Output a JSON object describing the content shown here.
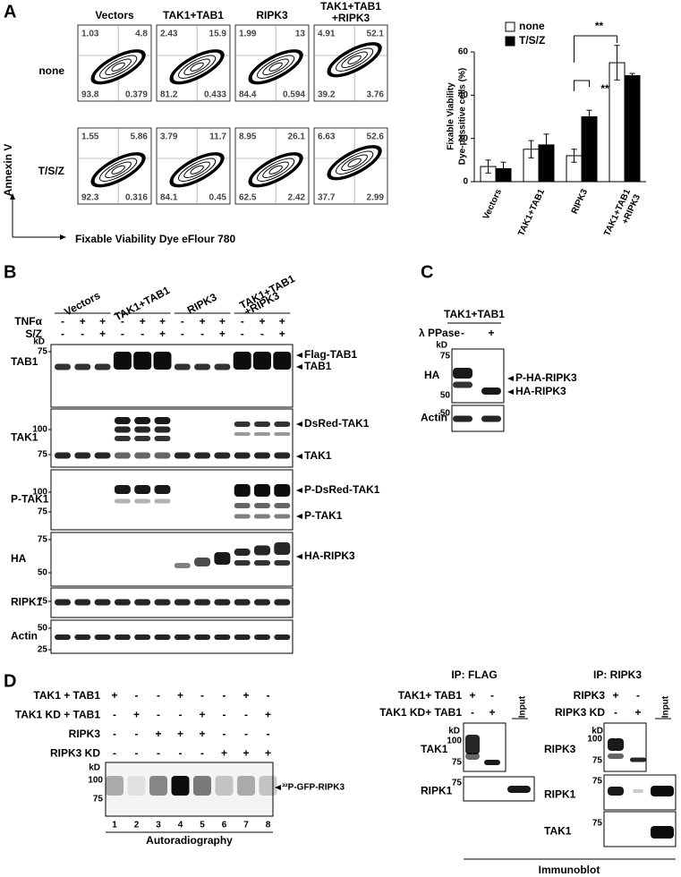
{
  "panel_labels": [
    "A",
    "B",
    "C",
    "D"
  ],
  "flow": {
    "columns": [
      [
        "Vectors"
      ],
      [
        "TAK1+TAB1"
      ],
      [
        "RIPK3"
      ],
      [
        "TAK1+TAB1",
        "+RIPK3"
      ]
    ],
    "rows": [
      "none",
      "T/S/Z"
    ],
    "y_axis": "Annexin V",
    "x_axis": "Fixable Viability Dye eFlour 780",
    "quadrants": [
      [
        [
          1.03,
          4.8,
          93.8,
          0.379
        ],
        [
          2.43,
          15.9,
          81.2,
          0.433
        ],
        [
          1.99,
          13,
          84.4,
          0.594
        ],
        [
          4.91,
          52.1,
          39.2,
          3.76
        ]
      ],
      [
        [
          1.55,
          5.86,
          92.3,
          0.316
        ],
        [
          3.79,
          11.7,
          84.1,
          0.45
        ],
        [
          8.95,
          26.1,
          62.5,
          2.42
        ],
        [
          6.63,
          52.6,
          37.7,
          2.99
        ]
      ]
    ]
  },
  "chart_data": {
    "type": "bar",
    "y_label": [
      "Fixable Viability",
      "Dye-possitive cells (%)"
    ],
    "categories": [
      [
        "Vectors"
      ],
      [
        "TAK1+TAB1"
      ],
      [
        "RIPK3"
      ],
      [
        "TAK1+TAB1",
        "+RIPK3"
      ]
    ],
    "series": [
      {
        "name": "none",
        "color": "#ffffff",
        "values": [
          7,
          15,
          12,
          55
        ],
        "errors": [
          3,
          4,
          3,
          8
        ]
      },
      {
        "name": "T/S/Z",
        "color": "#000000",
        "values": [
          6,
          17,
          30,
          49
        ],
        "errors": [
          3,
          5,
          3,
          1
        ]
      }
    ],
    "ylim": [
      0,
      60
    ],
    "yticks": [
      0,
      20,
      40,
      60
    ],
    "significance": [
      "**",
      "**"
    ]
  },
  "blot_b": {
    "groups": [
      [
        "Vectors"
      ],
      [
        "TAK1+TAB1"
      ],
      [
        "RIPK3"
      ],
      [
        "TAK1+TAB1",
        "+RIPK3"
      ]
    ],
    "treatments": [
      {
        "label": "TNFα",
        "signs": [
          "-",
          "+",
          "+",
          "-",
          "+",
          "+",
          "-",
          "+",
          "+",
          "-",
          "+",
          "+"
        ]
      },
      {
        "label": "S/Z",
        "signs": [
          "-",
          "-",
          "+",
          "-",
          "-",
          "+",
          "-",
          "-",
          "+",
          "-",
          "-",
          "+"
        ]
      }
    ],
    "kd": "kD",
    "blots": [
      {
        "label": "TAB1",
        "markers": [
          75
        ],
        "bands": [
          "Flag-TAB1",
          "TAB1"
        ]
      },
      {
        "label": "TAK1",
        "markers": [
          100,
          75
        ],
        "bands": [
          "DsRed-TAK1",
          "TAK1"
        ]
      },
      {
        "label": "P-TAK1",
        "markers": [
          100,
          75
        ],
        "bands": [
          "P-DsRed-TAK1",
          "P-TAK1"
        ]
      },
      {
        "label": "HA",
        "markers": [
          75,
          50
        ],
        "bands": [
          "HA-RIPK3"
        ]
      },
      {
        "label": "RIPK1",
        "markers": [
          75
        ]
      },
      {
        "label": "Actin",
        "markers": [
          50,
          25
        ]
      }
    ]
  },
  "blot_c": {
    "group": "TAK1+TAB1",
    "treatment": {
      "label": "λ PPase",
      "signs": [
        "-",
        "+"
      ]
    },
    "kd": "kD",
    "blots": [
      {
        "label": "HA",
        "markers": [
          75,
          50
        ],
        "bands": [
          "P-HA-RIPK3",
          "HA-RIPK3"
        ]
      },
      {
        "label": "Actin",
        "markers": [
          50
        ]
      }
    ]
  },
  "blot_d": {
    "conditions": [
      {
        "label": "TAK1 + TAB1",
        "signs": [
          "+",
          "-",
          "-",
          "+",
          "-",
          "-",
          "+",
          "-"
        ]
      },
      {
        "label": "TAK1 KD + TAB1",
        "signs": [
          "-",
          "+",
          "-",
          "-",
          "+",
          "-",
          "-",
          "+"
        ]
      },
      {
        "label": "RIPK3",
        "signs": [
          "-",
          "-",
          "+",
          "+",
          "+",
          "-",
          "-",
          "-"
        ]
      },
      {
        "label": "RIPK3 KD",
        "signs": [
          "-",
          "-",
          "-",
          "-",
          "-",
          "+",
          "+",
          "+"
        ]
      }
    ],
    "kd": "kD",
    "markers": [
      100,
      75
    ],
    "band": "³²P-GFP-RIPK3",
    "lanes": [
      1,
      2,
      3,
      4,
      5,
      6,
      7,
      8
    ],
    "method": "Autoradiography"
  },
  "ip_flag": {
    "title": "IP: FLAG",
    "conditions": [
      {
        "label": "TAK1+ TAB1",
        "signs": [
          "+",
          "-"
        ]
      },
      {
        "label": "TAK1 KD+ TAB1",
        "signs": [
          "-",
          "+"
        ]
      }
    ],
    "input": "Input",
    "kd": "kD",
    "blots": [
      {
        "label": "TAK1",
        "markers": [
          100,
          75
        ]
      },
      {
        "label": "RIPK1",
        "markers": [
          75
        ]
      }
    ]
  },
  "ip_ripk3": {
    "title": "IP: RIPK3",
    "conditions": [
      {
        "label": "RIPK3",
        "signs": [
          "+",
          "-"
        ]
      },
      {
        "label": "RIPK3 KD",
        "signs": [
          "-",
          "+"
        ]
      }
    ],
    "input": "Input",
    "kd": "kD",
    "blots": [
      {
        "label": "RIPK3",
        "markers": [
          100,
          75
        ]
      },
      {
        "label": "RIPK1",
        "markers": [
          75
        ]
      },
      {
        "label": "TAK1",
        "markers": [
          75
        ]
      }
    ]
  },
  "footer": "Immunoblot"
}
